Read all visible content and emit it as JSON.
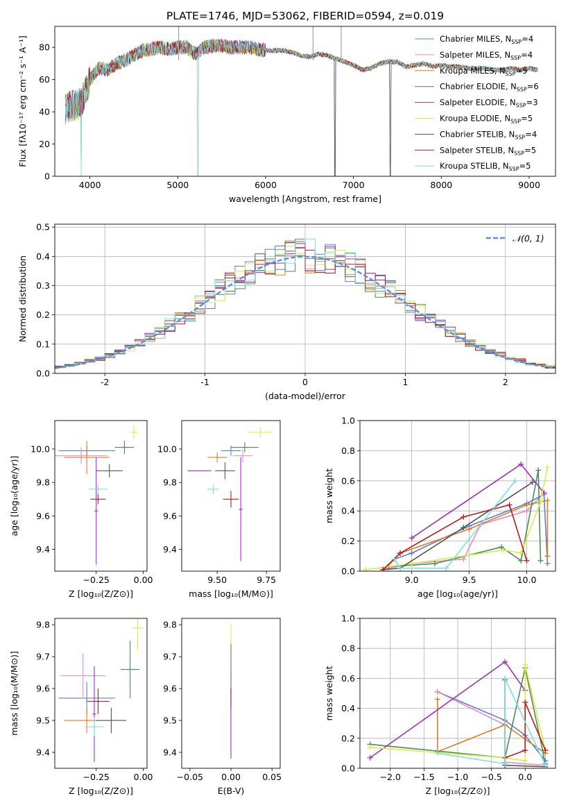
{
  "figure": {
    "title": "PLATE=1746, MJD=53062, FIBERID=0594, z=0.019"
  },
  "colors": {
    "Chabrier MILES": "#5b7fd6",
    "Salpeter MILES": "#e98ac4",
    "Kroupa MILES": "#e07b1f",
    "Chabrier ELODIE": "#4e8a57",
    "Salpeter ELODIE": "#9b30b5",
    "Kroupa ELODIE": "#d7ee4a",
    "Chabrier STELIB": "#555555",
    "Salpeter STELIB": "#b51c1c",
    "Kroupa STELIB": "#7fdde3",
    "normal": "#5b8fd9"
  },
  "chart_data": [
    {
      "id": "spectrum",
      "type": "line",
      "xlabel": "wavelength [Angstrom, rest frame]",
      "ylabel": "Flux [fλ10⁻¹⁷ erg cm⁻² s⁻¹ A⁻¹]",
      "xlim": [
        3600,
        9300
      ],
      "ylim": [
        0,
        93
      ],
      "xticks": [
        4000,
        5000,
        6000,
        7000,
        8000,
        9000
      ],
      "yticks": [
        0,
        20,
        40,
        60,
        80
      ],
      "legend": "top-right",
      "series": [
        {
          "name": "Chabrier MILES, N",
          "sub": "SSP",
          "suffix": "=4"
        },
        {
          "name": "Salpeter MILES, N",
          "sub": "SSP",
          "suffix": "=4"
        },
        {
          "name": "Kroupa MILES, N",
          "sub": "SSP",
          "suffix": "=5"
        },
        {
          "name": "Chabrier ELODIE, N",
          "sub": "SSP",
          "suffix": "=6"
        },
        {
          "name": "Salpeter ELODIE, N",
          "sub": "SSP",
          "suffix": "=3"
        },
        {
          "name": "Kroupa ELODIE, N",
          "sub": "SSP",
          "suffix": "=5"
        },
        {
          "name": "Chabrier STELIB, N",
          "sub": "SSP",
          "suffix": "=4"
        },
        {
          "name": "Salpeter STELIB, N",
          "sub": "SSP",
          "suffix": "=5"
        },
        {
          "name": "Kroupa STELIB, N",
          "sub": "SSP",
          "suffix": "=5"
        }
      ],
      "continuum": [
        [
          3720,
          42
        ],
        [
          3800,
          44
        ],
        [
          3900,
          45
        ],
        [
          4000,
          60
        ],
        [
          4100,
          67
        ],
        [
          4200,
          66
        ],
        [
          4300,
          70
        ],
        [
          4400,
          72
        ],
        [
          4500,
          75
        ],
        [
          4600,
          78
        ],
        [
          4700,
          79
        ],
        [
          4800,
          80
        ],
        [
          4900,
          79
        ],
        [
          5000,
          80
        ],
        [
          5100,
          80
        ],
        [
          5200,
          76
        ],
        [
          5300,
          80
        ],
        [
          5400,
          81
        ],
        [
          5500,
          81
        ],
        [
          5600,
          80
        ],
        [
          5700,
          80
        ],
        [
          5800,
          80
        ],
        [
          5900,
          79
        ],
        [
          6000,
          78
        ],
        [
          6100,
          78
        ],
        [
          6200,
          78
        ],
        [
          6300,
          77
        ],
        [
          6400,
          75
        ],
        [
          6500,
          74
        ],
        [
          6600,
          76
        ],
        [
          6700,
          75
        ],
        [
          6800,
          73
        ],
        [
          6900,
          71
        ],
        [
          7000,
          69
        ],
        [
          7100,
          66
        ],
        [
          7200,
          67
        ],
        [
          7300,
          70
        ],
        [
          7400,
          71
        ],
        [
          7500,
          71
        ],
        [
          7600,
          68
        ],
        [
          7700,
          69
        ],
        [
          7800,
          70
        ],
        [
          7900,
          68
        ],
        [
          8000,
          69
        ],
        [
          8100,
          68
        ],
        [
          8200,
          68
        ],
        [
          8300,
          67
        ],
        [
          8400,
          67
        ],
        [
          8500,
          67
        ],
        [
          8600,
          66
        ],
        [
          8700,
          66
        ],
        [
          8800,
          67
        ],
        [
          8900,
          66
        ],
        [
          9000,
          67
        ],
        [
          9100,
          66
        ]
      ],
      "dips": [
        [
          3900,
          0,
          2
        ],
        [
          5230,
          0,
          5
        ],
        [
          6790,
          0,
          3
        ],
        [
          7420,
          0,
          6
        ]
      ]
    },
    {
      "id": "residuals",
      "type": "histogram",
      "xlabel": "(data-model)/error",
      "ylabel": "Normed distribution",
      "xlim": [
        -2.5,
        2.5
      ],
      "ylim": [
        0,
        0.51
      ],
      "xticks": [
        -2,
        -1,
        0,
        1,
        2
      ],
      "yticks": [
        0.0,
        0.1,
        0.2,
        0.3,
        0.4,
        0.5
      ],
      "bin_width": 0.1,
      "legend": "top-right",
      "legend_label": "𝒩(0, 1)",
      "grid": true
    },
    {
      "id": "age_vs_Z",
      "type": "errorbar",
      "xlabel": "Z [log₁₀(Z/Z⊙)]",
      "ylabel": "age  [log₁₀(age/yr)]",
      "xlim": [
        -0.47,
        0.02
      ],
      "ylim": [
        9.27,
        10.17
      ],
      "xticks": [
        -0.25,
        0.0
      ],
      "xticklabels": [
        "−0.25",
        "0.00"
      ],
      "yticks": [
        9.4,
        9.6,
        9.8,
        10.0
      ],
      "points": [
        {
          "m": "Chabrier MILES",
          "x": -0.3,
          "xe": 0.15,
          "y": 9.99,
          "ye": 0.03
        },
        {
          "m": "Salpeter MILES",
          "x": -0.33,
          "xe": 0.14,
          "y": 9.96,
          "ye": 0.05
        },
        {
          "m": "Kroupa MILES",
          "x": -0.3,
          "xe": 0.12,
          "y": 9.95,
          "ye": 0.1
        },
        {
          "m": "Chabrier ELODIE",
          "x": -0.1,
          "xe": 0.05,
          "y": 10.01,
          "ye": 0.04
        },
        {
          "m": "Salpeter ELODIE",
          "x": -0.25,
          "xe": 0.01,
          "y": 9.63,
          "ye": 0.32
        },
        {
          "m": "Kroupa ELODIE",
          "x": -0.05,
          "xe": 0.02,
          "y": 10.1,
          "ye": 0.04
        },
        {
          "m": "Chabrier STELIB",
          "x": -0.18,
          "xe": 0.07,
          "y": 9.87,
          "ye": 0.04
        },
        {
          "m": "Salpeter STELIB",
          "x": -0.24,
          "xe": 0.04,
          "y": 9.7,
          "ye": 0.03
        },
        {
          "m": "Kroupa STELIB",
          "x": -0.24,
          "xe": 0.05,
          "y": 9.76,
          "ye": 0.03
        }
      ]
    },
    {
      "id": "age_vs_mass",
      "type": "errorbar",
      "xlabel": "mass [log₁₀(M/M⊙)]",
      "xlim": [
        9.32,
        9.82
      ],
      "ylim": [
        9.27,
        10.17
      ],
      "xticks": [
        9.5,
        9.75
      ],
      "xticklabels": [
        "9.50",
        "9.75"
      ],
      "yticks": [
        9.4,
        9.6,
        9.8,
        10.0
      ],
      "points": [
        {
          "m": "Chabrier MILES",
          "x": 9.57,
          "xe": 0.05,
          "y": 9.99,
          "ye": 0.03
        },
        {
          "m": "Salpeter MILES",
          "x": 9.63,
          "xe": 0.05,
          "y": 9.96,
          "ye": 0.04
        },
        {
          "m": "Kroupa MILES",
          "x": 9.5,
          "xe": 0.05,
          "y": 9.95,
          "ye": 0.03
        },
        {
          "m": "Chabrier ELODIE",
          "x": 9.64,
          "xe": 0.07,
          "y": 10.01,
          "ye": 0.03
        },
        {
          "m": "Salpeter ELODIE",
          "x": 9.62,
          "xe": 0.01,
          "y": 9.64,
          "ye": 0.31
        },
        {
          "m": "Kroupa ELODIE",
          "x": 9.72,
          "xe": 0.06,
          "y": 10.1,
          "ye": 0.03
        },
        {
          "m": "Chabrier STELIB",
          "x": 9.54,
          "xe": 0.05,
          "y": 9.87,
          "ye": 0.05
        },
        {
          "m": "Salpeter STELIB",
          "x": 9.57,
          "xe": 0.04,
          "y": 9.7,
          "ye": 0.05
        },
        {
          "m": "Kroupa STELIB",
          "x": 9.48,
          "xe": 0.03,
          "y": 9.76,
          "ye": 0.03
        },
        {
          "m": "Salpeter ELODIE",
          "x": 9.41,
          "xe": 0.06,
          "y": 9.87,
          "ye": 0.0
        }
      ]
    },
    {
      "id": "mass_weight_vs_age",
      "type": "line",
      "xlabel": "age  [log₁₀(age/yr)]",
      "ylabel": "mass weight",
      "xlim": [
        8.55,
        10.25
      ],
      "ylim": [
        0,
        1.0
      ],
      "xticks": [
        9.0,
        9.5,
        10.0
      ],
      "xticklabels": [
        "9.0",
        "9.5",
        "10.0"
      ],
      "yticks": [
        0.0,
        0.2,
        0.4,
        0.6,
        0.8,
        1.0
      ],
      "grid": true,
      "series": [
        {
          "m": "Chabrier MILES",
          "x": [
            8.85,
            9.0,
            9.5,
            10.0,
            10.15,
            10.18
          ],
          "y": [
            0.08,
            0.12,
            0.3,
            0.45,
            0.51,
            0.05
          ]
        },
        {
          "m": "Salpeter MILES",
          "x": [
            8.8,
            9.0,
            9.45,
            9.6,
            10.0,
            10.15
          ],
          "y": [
            0.02,
            0.05,
            0.08,
            0.31,
            0.4,
            0.52
          ]
        },
        {
          "m": "Kroupa MILES",
          "x": [
            8.75,
            8.9,
            9.5,
            10.0,
            10.18,
            10.18
          ],
          "y": [
            0.0,
            0.12,
            0.28,
            0.44,
            0.47,
            0.1
          ]
        },
        {
          "m": "Chabrier ELODIE",
          "x": [
            8.8,
            9.2,
            9.78,
            9.95,
            10.1,
            10.12
          ],
          "y": [
            0.03,
            0.05,
            0.16,
            0.07,
            0.67,
            0.07
          ]
        },
        {
          "m": "Salpeter ELODIE",
          "x": [
            9.0,
            9.95,
            10.15
          ],
          "y": [
            0.22,
            0.71,
            0.52
          ]
        },
        {
          "m": "Kroupa ELODIE",
          "x": [
            8.6,
            9.0,
            9.8,
            9.95,
            10.12,
            10.18
          ],
          "y": [
            0.01,
            0.05,
            0.14,
            0.12,
            0.46,
            0.69
          ]
        },
        {
          "m": "Chabrier STELIB",
          "x": [
            8.75,
            8.9,
            9.45,
            10.05
          ],
          "y": [
            0.01,
            0.02,
            0.29,
            0.59
          ]
        },
        {
          "m": "Salpeter STELIB",
          "x": [
            8.75,
            8.9,
            9.45,
            9.85,
            10.0
          ],
          "y": [
            0.01,
            0.12,
            0.36,
            0.44,
            0.07
          ]
        },
        {
          "m": "Kroupa STELIB",
          "x": [
            8.85,
            8.9,
            9.3,
            9.9
          ],
          "y": [
            0.08,
            0.02,
            0.02,
            0.6
          ]
        }
      ]
    },
    {
      "id": "mass_vs_Z",
      "type": "errorbar",
      "xlabel": "Z [log₁₀(Z/Z⊙)]",
      "ylabel": "mass [log₁₀(M/M⊙)]",
      "xlim": [
        -0.47,
        0.02
      ],
      "ylim": [
        9.35,
        9.82
      ],
      "xticks": [
        -0.25,
        0.0
      ],
      "xticklabels": [
        "−0.25",
        "0.00"
      ],
      "yticks": [
        9.4,
        9.5,
        9.6,
        9.7,
        9.8
      ],
      "points": [
        {
          "m": "Chabrier MILES",
          "x": -0.3,
          "xe": 0.15,
          "y": 9.57,
          "ye": 0.05
        },
        {
          "m": "Salpeter MILES",
          "x": -0.32,
          "xe": 0.12,
          "y": 9.64,
          "ye": 0.07
        },
        {
          "m": "Kroupa MILES",
          "x": -0.3,
          "xe": 0.12,
          "y": 9.5,
          "ye": 0.04
        },
        {
          "m": "Chabrier ELODIE",
          "x": -0.07,
          "xe": 0.05,
          "y": 9.66,
          "ye": 0.09
        },
        {
          "m": "Salpeter ELODIE",
          "x": -0.26,
          "xe": 0.01,
          "y": 9.52,
          "ye": 0.15
        },
        {
          "m": "Kroupa ELODIE",
          "x": -0.03,
          "xe": 0.03,
          "y": 9.79,
          "ye": 0.07
        },
        {
          "m": "Chabrier STELIB",
          "x": -0.17,
          "xe": 0.08,
          "y": 9.5,
          "ye": 0.04
        },
        {
          "m": "Salpeter STELIB",
          "x": -0.24,
          "xe": 0.06,
          "y": 9.56,
          "ye": 0.04
        },
        {
          "m": "Kroupa STELIB",
          "x": -0.26,
          "xe": 0.05,
          "y": 9.48,
          "ye": 0.03
        }
      ]
    },
    {
      "id": "mass_vs_EBV",
      "type": "errorbar",
      "xlabel": "E(B-V)",
      "xlim": [
        -0.06,
        0.06
      ],
      "ylim": [
        9.35,
        9.82
      ],
      "xticks": [
        -0.05,
        0.0,
        0.05
      ],
      "xticklabels": [
        "−0.05",
        "0.00",
        "0.05"
      ],
      "yticks": [
        9.4,
        9.5,
        9.6,
        9.7,
        9.8
      ],
      "points": [
        {
          "m": "Kroupa ELODIE",
          "x": 0.0,
          "xe": 0.0,
          "y": 9.72,
          "ye": 0.08
        },
        {
          "m": "Salpeter ELODIE",
          "x": 0.0,
          "xe": 0.0,
          "y": 9.52,
          "ye": 0.14
        },
        {
          "m": "Chabrier ELODIE",
          "x": 0.0,
          "xe": 0.0,
          "y": 9.66,
          "ye": 0.08
        },
        {
          "m": "Salpeter STELIB",
          "x": 0.0,
          "xe": 0.0,
          "y": 9.57,
          "ye": 0.03
        }
      ]
    },
    {
      "id": "mass_weight_vs_Z",
      "type": "line",
      "xlabel": "Z [log₁₀(Z/Z⊙)]",
      "ylabel": "mass weight",
      "xlim": [
        -2.45,
        0.45
      ],
      "ylim": [
        0,
        1.0
      ],
      "xticks": [
        -2.0,
        -1.5,
        -1.0,
        -0.5,
        0.0
      ],
      "xticklabels": [
        "−2.0",
        "−1.5",
        "−1.0",
        "−0.5",
        "0.0"
      ],
      "yticks": [
        0.0,
        0.2,
        0.4,
        0.6,
        0.8,
        1.0
      ],
      "grid": true,
      "series": [
        {
          "m": "Chabrier MILES",
          "x": [
            -1.3,
            -0.3,
            0.0,
            0.3
          ],
          "y": [
            0.51,
            0.32,
            0.22,
            0.05
          ]
        },
        {
          "m": "Salpeter MILES",
          "x": [
            -1.3,
            -0.3,
            -0.3,
            0.3
          ],
          "y": [
            0.51,
            0.29,
            0.04,
            0.02
          ]
        },
        {
          "m": "Kroupa MILES",
          "x": [
            -1.3,
            -1.3,
            -0.3,
            0.3
          ],
          "y": [
            0.46,
            0.11,
            0.29,
            0.1
          ]
        },
        {
          "m": "Chabrier ELODIE",
          "x": [
            -2.3,
            -0.3,
            0.0,
            0.3
          ],
          "y": [
            0.16,
            0.07,
            0.67,
            0.03
          ]
        },
        {
          "m": "Salpeter ELODIE",
          "x": [
            -2.3,
            -0.3,
            0.0
          ],
          "y": [
            0.07,
            0.71,
            0.52
          ]
        },
        {
          "m": "Kroupa ELODIE",
          "x": [
            -2.3,
            -0.3,
            0.0,
            0.0,
            0.3
          ],
          "y": [
            0.14,
            0.07,
            0.05,
            0.69,
            0.12
          ]
        },
        {
          "m": "Chabrier STELIB",
          "x": [
            -0.3,
            -0.3,
            0.3
          ],
          "y": [
            0.59,
            0.02,
            0.01
          ]
        },
        {
          "m": "Salpeter STELIB",
          "x": [
            -0.3,
            0.0,
            0.0,
            0.3
          ],
          "y": [
            0.07,
            0.12,
            0.44,
            0.12
          ]
        },
        {
          "m": "Kroupa STELIB",
          "x": [
            -1.3,
            -0.3,
            -0.3,
            0.3
          ],
          "y": [
            0.1,
            0.03,
            0.6,
            0.02
          ]
        }
      ]
    }
  ]
}
